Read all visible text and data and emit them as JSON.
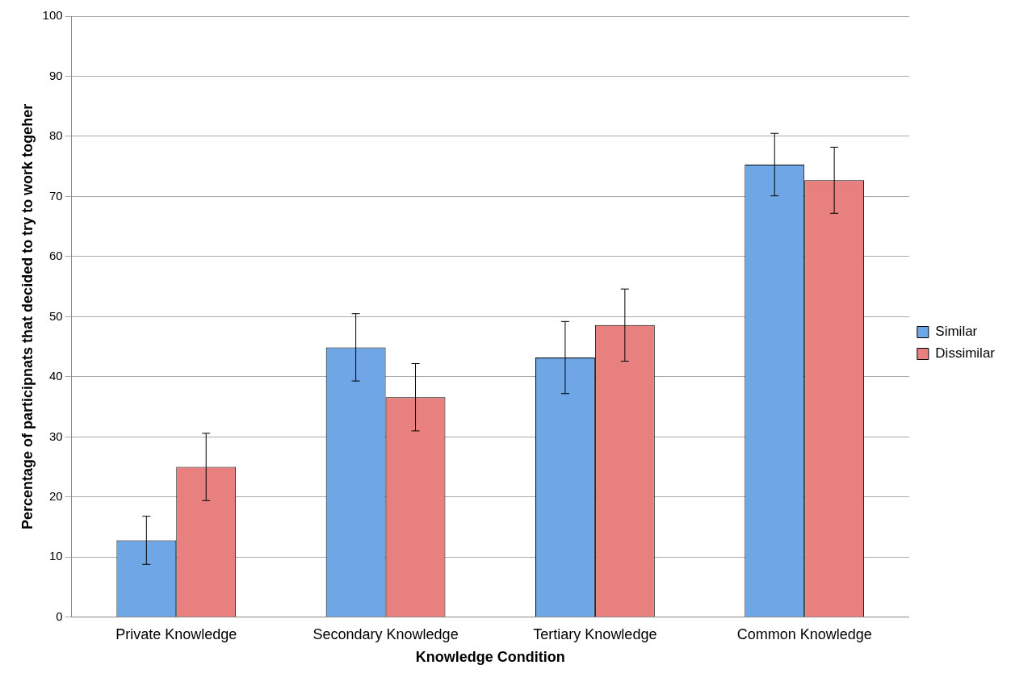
{
  "chart_data": {
    "type": "bar",
    "xlabel": "Knowledge Condition",
    "ylabel": "Percentage of participnats that decided to try to work togeher",
    "categories": [
      "Private Knowledge",
      "Secondary Knowledge",
      "Tertiary Knowledge",
      "Common Knowledge"
    ],
    "series": [
      {
        "name": "Similar",
        "color": "#6fa6e6",
        "values": [
          12.8,
          44.9,
          43.2,
          75.3
        ],
        "errors": [
          4,
          5.6,
          6,
          5.2
        ]
      },
      {
        "name": "Dissimilar",
        "color": "#e88080",
        "values": [
          25,
          36.6,
          48.6,
          72.7
        ],
        "errors": [
          5.6,
          5.6,
          6,
          5.5
        ]
      }
    ],
    "ylim": [
      0,
      100
    ],
    "yticks": [
      0,
      10,
      20,
      30,
      40,
      50,
      60,
      70,
      80,
      90,
      100
    ],
    "grid": "y",
    "legend": "right"
  }
}
